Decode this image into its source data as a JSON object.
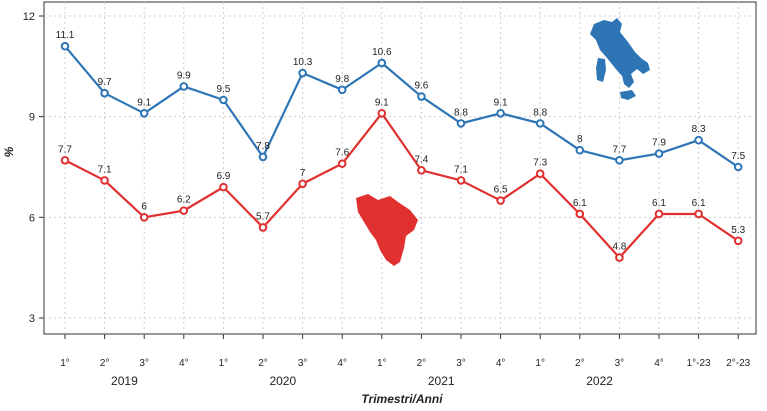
{
  "chart_data": {
    "type": "line",
    "categories": [
      "1°",
      "2°",
      "3°",
      "4°",
      "1°",
      "2°",
      "3°",
      "4°",
      "1°",
      "2°",
      "3°",
      "4°",
      "1°",
      "2°",
      "3°",
      "4°",
      "1°-23",
      "2°-23"
    ],
    "year_groups": [
      {
        "label": "2019",
        "span": [
          0,
          3
        ]
      },
      {
        "label": "2020",
        "span": [
          4,
          7
        ]
      },
      {
        "label": "2021",
        "span": [
          8,
          11
        ]
      },
      {
        "label": "2022",
        "span": [
          12,
          15
        ]
      }
    ],
    "series": [
      {
        "color": "#2e75b6",
        "values": [
          11.1,
          9.7,
          9.1,
          9.9,
          9.5,
          7.8,
          10.3,
          9.8,
          10.6,
          9.6,
          8.8,
          9.1,
          8.8,
          8.0,
          7.7,
          7.9,
          8.3,
          7.5
        ],
        "labels": [
          "11.1",
          "9.7",
          "9.1",
          "9.9",
          "9.5",
          "7.8",
          "10.3",
          "9.8",
          "10.6",
          "9.6",
          "8.8",
          "9.1",
          "8.8",
          "8",
          "7.7",
          "7.9",
          "8.3",
          "7.5"
        ]
      },
      {
        "color": "#e03030",
        "values": [
          7.7,
          7.1,
          6.0,
          6.2,
          6.9,
          5.7,
          7.0,
          7.6,
          9.1,
          7.4,
          7.1,
          6.5,
          7.3,
          6.1,
          4.8,
          6.1,
          6.1,
          5.3
        ],
        "labels": [
          "7.7",
          "7.1",
          "6",
          "6.2",
          "6.9",
          "5.7",
          "7",
          "7.6",
          "9.1",
          "7.4",
          "7.1",
          "6.5",
          "7.3",
          "6.1",
          "4.8",
          "6.1",
          "6.1",
          "5.3"
        ]
      }
    ],
    "yticks": [
      "3",
      "6",
      "9",
      "12"
    ],
    "ylim": [
      3,
      12
    ],
    "ylabel": "%",
    "xlabel": "Trimestri/Anni",
    "grid": true,
    "legend": "none",
    "map_icons": [
      {
        "name": "italy-map-icon",
        "color": "#2e75b6"
      },
      {
        "name": "tuscany-map-icon",
        "color": "#e03030"
      }
    ]
  }
}
